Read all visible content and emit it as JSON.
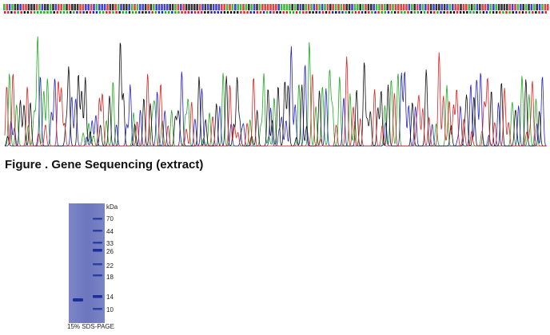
{
  "figure_title": "Figure . Gene Sequencing (extract)",
  "gel": {
    "unit_label": "kDa",
    "markers": [
      "70",
      "44",
      "33",
      "26",
      "22",
      "18",
      "14",
      "10"
    ],
    "caption": "15% SDS-PAGE"
  },
  "colors": {
    "A": "#22aa22",
    "C": "#2222cc",
    "G": "#111111",
    "T": "#dd2222",
    "gel_background": "#6f78c0",
    "gel_band": "#1f2d99"
  }
}
